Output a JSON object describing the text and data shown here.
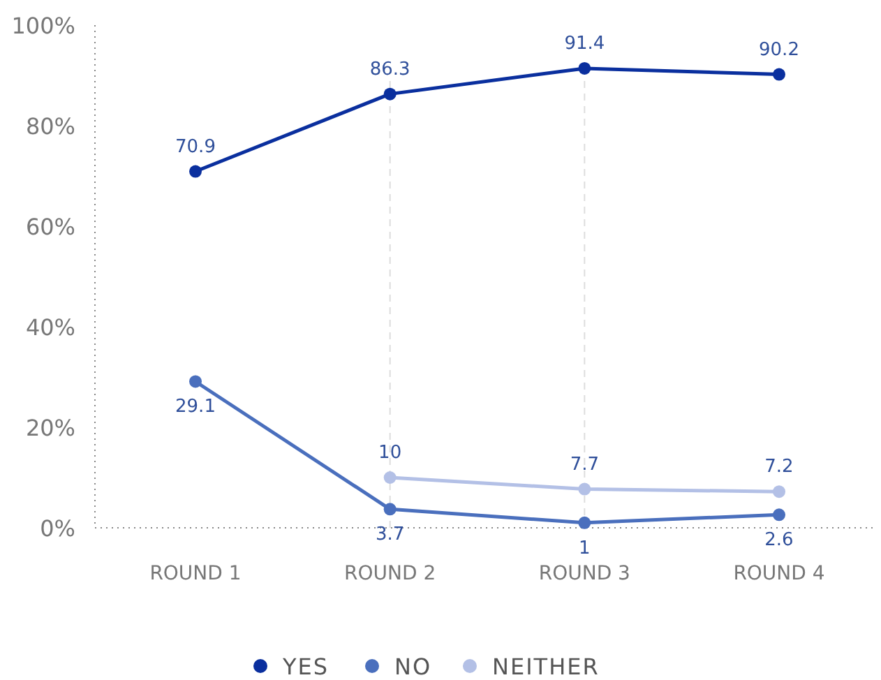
{
  "chart_data": {
    "type": "line",
    "categories": [
      "ROUND 1",
      "ROUND 2",
      "ROUND 3",
      "ROUND 4"
    ],
    "series": [
      {
        "name": "YES",
        "color": "#0a2f9e",
        "values": [
          70.9,
          86.3,
          91.4,
          90.2
        ]
      },
      {
        "name": "NO",
        "color": "#4a6fbd",
        "values": [
          29.1,
          3.7,
          1,
          2.6
        ]
      },
      {
        "name": "NEITHER",
        "color": "#b3c0e6",
        "values": [
          null,
          10,
          7.7,
          7.2
        ]
      }
    ],
    "ylim": [
      0,
      100
    ],
    "yticks": [
      {
        "value": 0,
        "label": "0%"
      },
      {
        "value": 20,
        "label": "20%"
      },
      {
        "value": 40,
        "label": "40%"
      },
      {
        "value": 60,
        "label": "60%"
      },
      {
        "value": 80,
        "label": "80%"
      },
      {
        "value": 100,
        "label": "100%"
      }
    ],
    "grid": "x",
    "legend": "bottom",
    "marker": "circle",
    "line_style": "solid",
    "data_labels": true
  }
}
